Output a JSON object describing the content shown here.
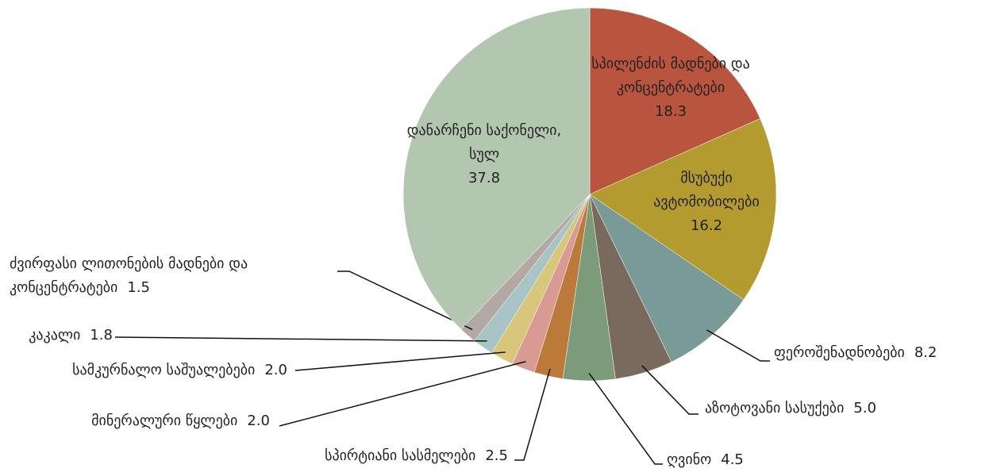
{
  "chart_data": {
    "type": "pie",
    "categories": [
      "სპილენძის მადნები და კონცენტრატები",
      "მსუბუქი ავტომობილები",
      "ფეროშენადნობები",
      "აზოტოვანი სასუქები",
      "ღვინო",
      "სპირტიანი სასმელები",
      "მინერალური წყლები",
      "სამკურნალო საშუალებები",
      "კაკალი",
      "ძვირფასი ლითონების მადნები და კონცენტრატები",
      "დანარჩენი საქონელი, სულ"
    ],
    "values": [
      18.3,
      16.2,
      8.2,
      5.0,
      4.5,
      2.5,
      2.0,
      2.0,
      1.8,
      1.5,
      37.8
    ],
    "value_labels": [
      "18.3",
      "16.2",
      "8.2",
      "5.0",
      "4.5",
      "2.5",
      "2.0",
      "2.0",
      "1.8",
      "1.5",
      "37.8"
    ],
    "colors": [
      "#b9553e",
      "#b39b30",
      "#7a9a98",
      "#7a6a5e",
      "#7b9b7a",
      "#bb7a3a",
      "#d99a93",
      "#d8c77a",
      "#a8c4c4",
      "#b3a8a3",
      "#b3c6b0"
    ]
  }
}
